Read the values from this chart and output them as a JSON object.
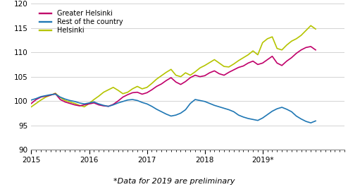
{
  "footnote": "*Data for 2019 are preliminary",
  "legend": [
    "Greater Helsinki",
    "Rest of the country",
    "Helsinki"
  ],
  "colors": [
    "#c0006a",
    "#1f77b4",
    "#b5c400"
  ],
  "ylim": [
    90,
    120
  ],
  "yticks": [
    90,
    95,
    100,
    105,
    110,
    115,
    120
  ],
  "xlim_start": 2015.0,
  "xlim_end": 2019.667,
  "xtick_labels": [
    "2015",
    "2016",
    "2017",
    "2018",
    "2019*"
  ],
  "xtick_positions": [
    2015.0,
    2016.0,
    2017.0,
    2018.0,
    2019.0
  ],
  "greater_helsinki": [
    99.5,
    100.3,
    100.8,
    101.0,
    101.2,
    101.5,
    100.3,
    99.8,
    99.5,
    99.2,
    99.0,
    99.2,
    99.4,
    99.6,
    99.2,
    99.0,
    98.9,
    99.3,
    100.0,
    100.8,
    101.3,
    101.7,
    101.8,
    101.4,
    101.7,
    102.3,
    103.0,
    103.5,
    104.2,
    104.8,
    103.9,
    103.4,
    104.0,
    104.8,
    105.3,
    105.0,
    105.2,
    105.8,
    106.2,
    105.6,
    105.3,
    105.9,
    106.4,
    106.9,
    107.2,
    107.8,
    108.2,
    107.5,
    107.8,
    108.5,
    109.2,
    107.8,
    107.3,
    108.2,
    108.9,
    109.8,
    110.5,
    111.0,
    111.2,
    110.5
  ],
  "rest_of_country": [
    100.2,
    100.5,
    100.9,
    101.1,
    101.3,
    101.4,
    100.8,
    100.4,
    100.1,
    99.9,
    99.6,
    99.4,
    99.6,
    99.8,
    99.4,
    99.1,
    98.9,
    99.2,
    99.6,
    99.9,
    100.2,
    100.3,
    100.1,
    99.7,
    99.4,
    98.9,
    98.3,
    97.8,
    97.3,
    96.9,
    97.1,
    97.5,
    98.2,
    99.5,
    100.3,
    100.1,
    99.9,
    99.5,
    99.1,
    98.8,
    98.5,
    98.2,
    97.8,
    97.1,
    96.7,
    96.4,
    96.2,
    96.0,
    96.5,
    97.2,
    97.9,
    98.4,
    98.7,
    98.3,
    97.8,
    96.9,
    96.3,
    95.8,
    95.5,
    95.9
  ],
  "helsinki": [
    98.8,
    99.5,
    100.2,
    100.8,
    101.2,
    101.6,
    100.7,
    100.1,
    99.8,
    99.5,
    99.1,
    98.8,
    99.5,
    100.3,
    101.0,
    101.8,
    102.3,
    102.8,
    102.2,
    101.5,
    101.8,
    102.5,
    103.0,
    102.5,
    102.8,
    103.6,
    104.5,
    105.2,
    105.9,
    106.5,
    105.3,
    105.0,
    105.8,
    105.3,
    106.0,
    106.8,
    107.3,
    107.9,
    108.5,
    107.8,
    107.1,
    107.0,
    107.6,
    108.3,
    108.9,
    109.5,
    110.3,
    109.5,
    112.0,
    112.8,
    113.2,
    110.8,
    110.5,
    111.5,
    112.3,
    112.8,
    113.5,
    114.5,
    115.5,
    114.8
  ],
  "line_width": 1.2,
  "grid_color": "#cccccc",
  "tick_fontsize": 7.5,
  "footnote_fontsize": 8
}
